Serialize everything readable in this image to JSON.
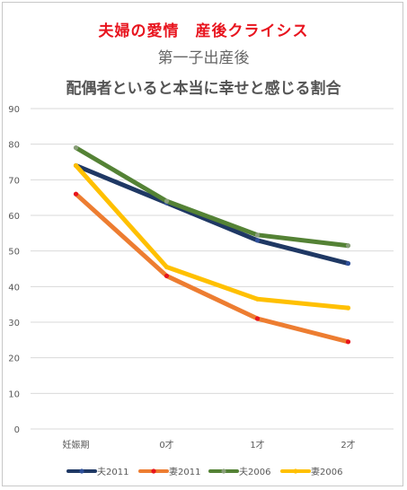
{
  "chart_data": {
    "type": "line",
    "title": "夫婦の愛情　産後クライシス",
    "subtitle": "第一子出産後",
    "subtitle2": "配偶者といると本当に幸せと感じる割合",
    "categories": [
      "妊娠期",
      "0才",
      "1才",
      "2才"
    ],
    "ylim": [
      0,
      90
    ],
    "yticks": [
      0,
      10,
      20,
      30,
      40,
      50,
      60,
      70,
      80,
      90
    ],
    "grid": true,
    "legend_position": "bottom",
    "series": [
      {
        "name": "夫2011",
        "values": [
          74,
          63.5,
          53,
          46.5
        ],
        "color": "#1f3864",
        "marker": "#2e4f9a"
      },
      {
        "name": "妻2011",
        "values": [
          66,
          43,
          31,
          24.5
        ],
        "color": "#ed7d31",
        "marker": "#e8141e"
      },
      {
        "name": "夫2006",
        "values": [
          79,
          64,
          54.5,
          51.5
        ],
        "color": "#548235",
        "marker": "#8a9f7a"
      },
      {
        "name": "妻2006",
        "values": [
          74,
          45.5,
          36.5,
          34
        ],
        "color": "#ffc000",
        "marker": "#ffc000"
      }
    ]
  }
}
